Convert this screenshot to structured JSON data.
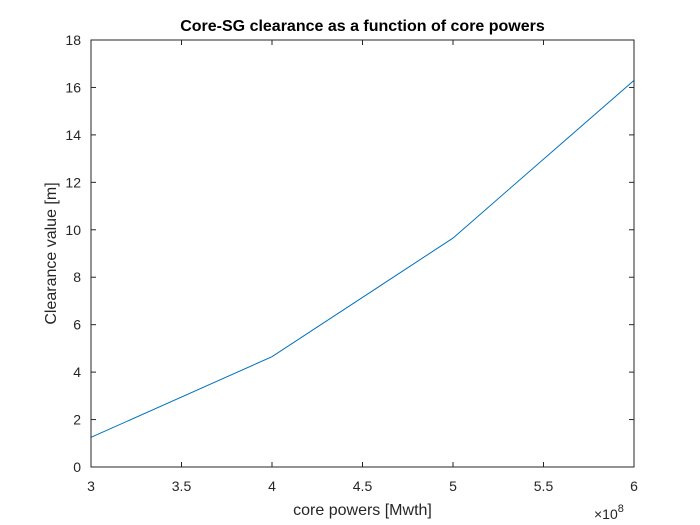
{
  "chart_data": {
    "type": "line",
    "title": "Core-SG clearance as a function of core powers",
    "xlabel": "core powers [Mwth]",
    "ylabel": "Clearance value [m]",
    "x_exponent_base": "×10",
    "x_exponent_power": "8",
    "xlim": [
      300000000,
      600000000
    ],
    "ylim": [
      0,
      18
    ],
    "x_ticks": [
      300000000,
      350000000,
      400000000,
      450000000,
      500000000,
      550000000,
      600000000
    ],
    "x_tick_labels": [
      "3",
      "3.5",
      "4",
      "4.5",
      "5",
      "5.5",
      "6"
    ],
    "y_ticks": [
      0,
      2,
      4,
      6,
      8,
      10,
      12,
      14,
      16,
      18
    ],
    "y_tick_labels": [
      "0",
      "2",
      "4",
      "6",
      "8",
      "10",
      "12",
      "14",
      "16",
      "18"
    ],
    "grid": false,
    "series": [
      {
        "color": "#0072BD",
        "x": [
          300000000,
          400000000,
          500000000,
          600000000
        ],
        "y": [
          1.25,
          4.65,
          9.65,
          16.3
        ]
      }
    ]
  }
}
